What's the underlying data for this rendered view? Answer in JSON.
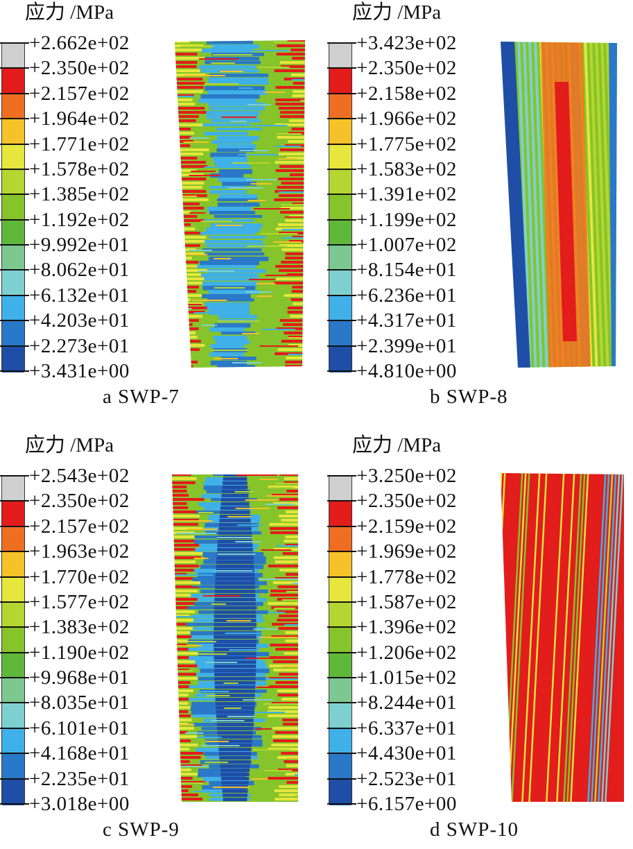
{
  "legend_colors": [
    "#cfcfcf",
    "#e31c1c",
    "#ef6f22",
    "#f6c229",
    "#e6e63c",
    "#b5d630",
    "#85c42a",
    "#5fb83a",
    "#7cc890",
    "#7ed0d0",
    "#40b0e8",
    "#2a78c8",
    "#1f4ea6"
  ],
  "panels": [
    {
      "id": "a",
      "title": "应力 /MPa",
      "caption": "a  SWP-7",
      "pattern": "horizontal-stripes-blue-core",
      "legend": [
        "+2.662e+02",
        "+2.350e+02",
        "+2.157e+02",
        "+1.964e+02",
        "+1.771e+02",
        "+1.578e+02",
        "+1.385e+02",
        "+1.192e+02",
        "+9.992e+01",
        "+8.062e+01",
        "+6.132e+01",
        "+4.203e+01",
        "+2.273e+01",
        "+3.431e+00"
      ]
    },
    {
      "id": "b",
      "title": "应力 /MPa",
      "caption": "b  SWP-8",
      "pattern": "vertical-stripes-diagonal-band",
      "legend": [
        "+3.423e+02",
        "+2.350e+02",
        "+2.158e+02",
        "+1.966e+02",
        "+1.775e+02",
        "+1.583e+02",
        "+1.391e+02",
        "+1.199e+02",
        "+1.007e+02",
        "+8.154e+01",
        "+6.236e+01",
        "+4.317e+01",
        "+2.399e+01",
        "+4.810e+00"
      ]
    },
    {
      "id": "c",
      "title": "应力 /MPa",
      "caption": "c  SWP-9",
      "pattern": "horizontal-stripes-blue-core",
      "legend": [
        "+2.543e+02",
        "+2.350e+02",
        "+2.157e+02",
        "+1.963e+02",
        "+1.770e+02",
        "+1.577e+02",
        "+1.383e+02",
        "+1.190e+02",
        "+9.968e+01",
        "+8.035e+01",
        "+6.101e+01",
        "+4.168e+01",
        "+2.235e+01",
        "+3.018e+00"
      ]
    },
    {
      "id": "d",
      "title": "应力 /MPa",
      "caption": "d  SWP-10",
      "pattern": "vertical-red-stripes",
      "legend": [
        "+3.250e+02",
        "+2.350e+02",
        "+2.159e+02",
        "+1.969e+02",
        "+1.778e+02",
        "+1.587e+02",
        "+1.396e+02",
        "+1.206e+02",
        "+1.015e+02",
        "+8.244e+01",
        "+6.337e+01",
        "+4.430e+01",
        "+2.523e+01",
        "+6.157e+00"
      ]
    }
  ]
}
